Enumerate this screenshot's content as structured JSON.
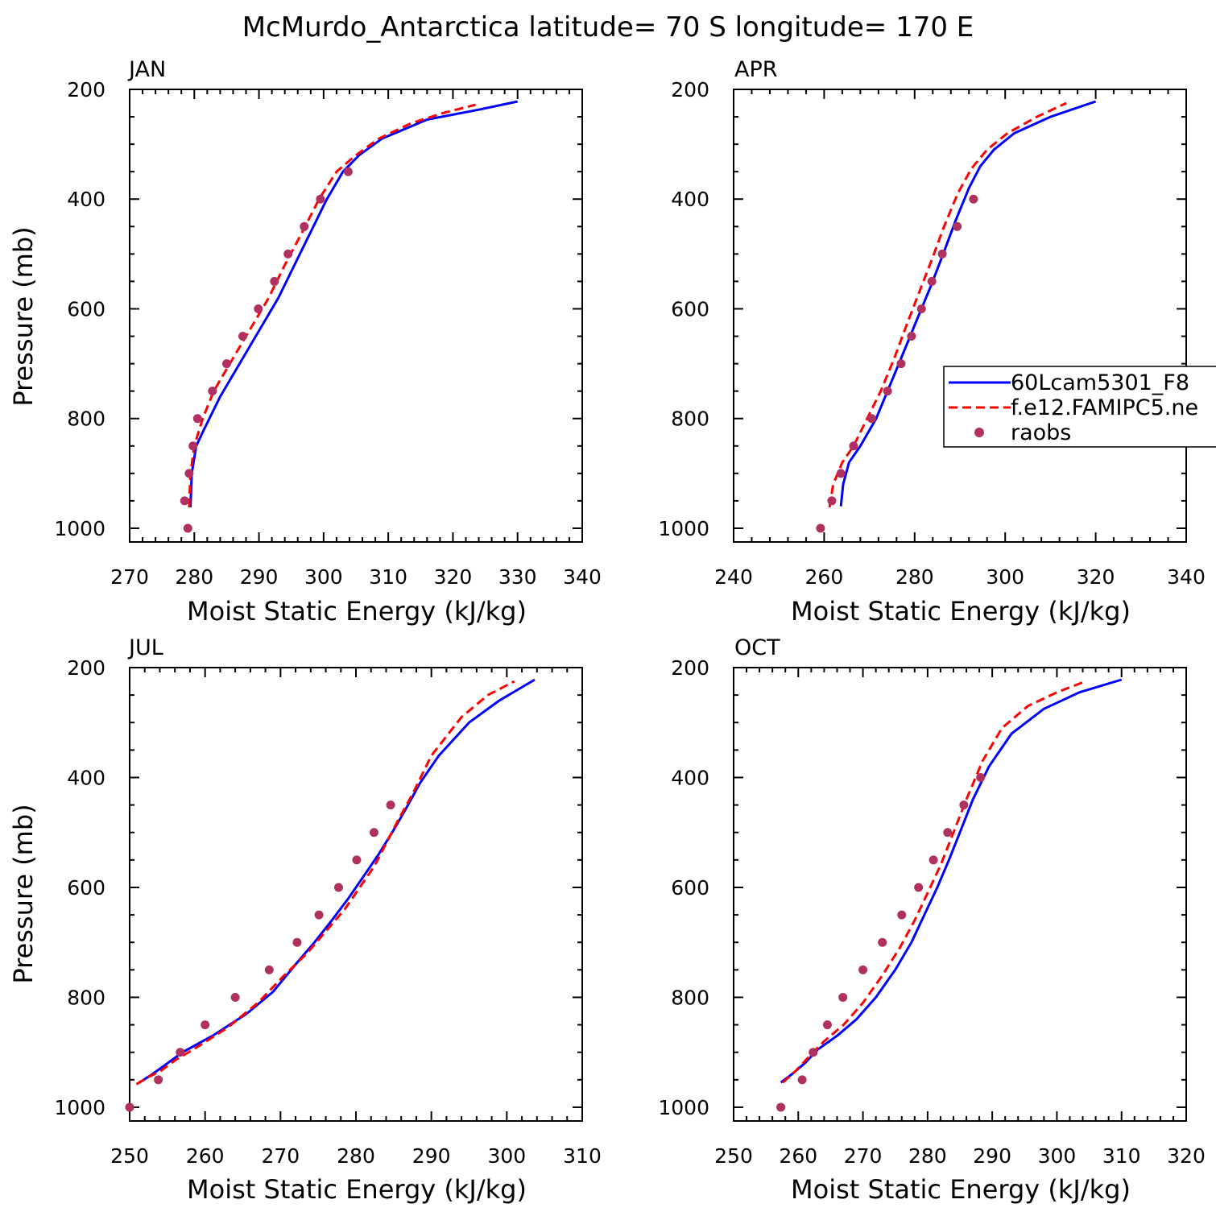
{
  "title": "McMurdo_Antarctica  latitude= 70 S longitude= 170 E",
  "colors": {
    "model1": "#0000ff",
    "model2": "#ff0000",
    "obs": "#b03060"
  },
  "legend": [
    {
      "label": "60Lcam5301_F8",
      "style": "solid",
      "color": "#0000ff"
    },
    {
      "label": "f.e12.FAMIPC5.ne",
      "style": "dashed",
      "color": "#ff0000"
    },
    {
      "label": "raobs",
      "style": "marker",
      "color": "#b03060"
    }
  ],
  "chart_data": [
    {
      "type": "line",
      "panel": "JAN",
      "xlabel": "Moist Static Energy (kJ/kg)",
      "ylabel": "Pressure (mb)",
      "xlim": [
        270,
        340
      ],
      "ylim": [
        1000,
        200
      ],
      "xticks": [
        270,
        280,
        290,
        300,
        310,
        320,
        330,
        340
      ],
      "yticks": [
        200,
        400,
        600,
        800,
        1000
      ],
      "series": [
        {
          "name": "60Lcam5301_F8",
          "x": [
            279.4,
            279.6,
            280.3,
            281.5,
            284.0,
            287.0,
            290.0,
            293.0,
            295.5,
            298.0,
            300.5,
            303.0,
            305.5,
            309.0,
            316.0,
            324.0,
            330.0
          ],
          "y": [
            962,
            900,
            850,
            820,
            760,
            700,
            640,
            580,
            520,
            460,
            400,
            350,
            320,
            290,
            255,
            237,
            222
          ]
        },
        {
          "name": "f.e12.FAMIPC5.ne",
          "x": [
            279.2,
            279.4,
            280.0,
            281.3,
            283.0,
            285.5,
            288.5,
            291.5,
            294.0,
            296.7,
            299.3,
            302.0,
            305.0,
            308.5,
            313.5,
            318.5,
            323.5
          ],
          "y": [
            962,
            900,
            850,
            800,
            750,
            700,
            640,
            580,
            520,
            460,
            400,
            350,
            320,
            290,
            262,
            243,
            228
          ]
        },
        {
          "name": "raobs",
          "x": [
            279.0,
            278.5,
            279.2,
            279.8,
            280.5,
            282.8,
            285.0,
            287.5,
            289.9,
            292.4,
            294.5,
            297.0,
            299.5,
            303.8
          ],
          "y": [
            1000,
            950,
            900,
            850,
            800,
            750,
            700,
            650,
            600,
            550,
            500,
            450,
            400,
            350
          ]
        }
      ]
    },
    {
      "type": "line",
      "panel": "APR",
      "xlabel": "Moist Static Energy (kJ/kg)",
      "ylabel": "",
      "xlim": [
        240,
        340
      ],
      "ylim": [
        1000,
        200
      ],
      "xticks": [
        240,
        260,
        280,
        300,
        320,
        340
      ],
      "yticks": [
        200,
        400,
        600,
        800,
        1000
      ],
      "series": [
        {
          "name": "60Lcam5301_F8",
          "x": [
            263.7,
            264.2,
            265.5,
            268.0,
            271.5,
            274.5,
            277.5,
            280.5,
            283.5,
            286.3,
            289.0,
            292.0,
            294.5,
            297.5,
            302.0,
            310.0,
            320.0
          ],
          "y": [
            960,
            920,
            880,
            850,
            800,
            740,
            680,
            620,
            560,
            500,
            440,
            380,
            340,
            310,
            280,
            250,
            222
          ]
        },
        {
          "name": "f.e12.FAMIPC5.ne",
          "x": [
            261.2,
            262.0,
            264.0,
            266.5,
            269.5,
            272.5,
            275.5,
            278.2,
            281.0,
            283.8,
            286.5,
            289.5,
            292.5,
            296.0,
            300.5,
            307.0,
            313.5
          ],
          "y": [
            962,
            920,
            880,
            850,
            800,
            750,
            690,
            630,
            570,
            510,
            450,
            390,
            345,
            310,
            280,
            250,
            225
          ]
        },
        {
          "name": "raobs",
          "x": [
            259.2,
            261.7,
            263.7,
            266.5,
            270.5,
            274.0,
            277.0,
            279.3,
            281.5,
            283.8,
            286.1,
            289.4,
            293.0
          ],
          "y": [
            1000,
            950,
            900,
            850,
            800,
            750,
            700,
            650,
            600,
            550,
            500,
            450,
            400
          ]
        }
      ]
    },
    {
      "type": "line",
      "panel": "JUL",
      "xlabel": "Moist Static Energy (kJ/kg)",
      "ylabel": "Pressure (mb)",
      "xlim": [
        250,
        310
      ],
      "ylim": [
        1000,
        200
      ],
      "xticks": [
        250,
        260,
        270,
        280,
        290,
        300,
        310
      ],
      "yticks": [
        200,
        400,
        600,
        800,
        1000
      ],
      "series": [
        {
          "name": "60Lcam5301_F8",
          "x": [
            251.3,
            253.0,
            254.5,
            257.0,
            261.0,
            265.5,
            269.0,
            272.0,
            274.5,
            276.8,
            279.0,
            281.0,
            283.0,
            284.8,
            286.5,
            288.5,
            291.0,
            295.0,
            299.0,
            303.7
          ],
          "y": [
            955,
            940,
            925,
            900,
            870,
            830,
            790,
            740,
            700,
            660,
            620,
            580,
            540,
            500,
            460,
            410,
            360,
            300,
            260,
            222
          ]
        },
        {
          "name": "f.e12.FAMIPC5.ne",
          "x": [
            250.9,
            252.5,
            254.0,
            256.0,
            259.0,
            263.0,
            267.0,
            270.5,
            273.5,
            276.0,
            278.5,
            280.5,
            282.5,
            284.0,
            285.5,
            287.5,
            290.0,
            294.0,
            297.5,
            301.0
          ],
          "y": [
            958,
            945,
            935,
            915,
            890,
            855,
            810,
            760,
            720,
            680,
            640,
            600,
            560,
            520,
            480,
            430,
            360,
            290,
            250,
            225
          ]
        },
        {
          "name": "raobs",
          "x": [
            250.0,
            253.8,
            256.7,
            260.0,
            264.0,
            268.5,
            272.2,
            275.1,
            277.7,
            280.1,
            282.4,
            284.6
          ],
          "y": [
            1000,
            950,
            900,
            850,
            800,
            750,
            700,
            650,
            600,
            550,
            500,
            450
          ]
        }
      ]
    },
    {
      "type": "line",
      "panel": "OCT",
      "xlabel": "Moist Static Energy (kJ/kg)",
      "ylabel": "",
      "xlim": [
        250,
        320
      ],
      "ylim": [
        1000,
        200
      ],
      "xticks": [
        250,
        260,
        270,
        280,
        290,
        300,
        310,
        320
      ],
      "yticks": [
        200,
        400,
        600,
        800,
        1000
      ],
      "series": [
        {
          "name": "60Lcam5301_F8",
          "x": [
            257.3,
            259.0,
            261.0,
            263.0,
            266.0,
            269.0,
            272.0,
            275.0,
            277.5,
            279.5,
            281.5,
            283.3,
            285.0,
            287.0,
            289.5,
            293.0,
            298.0,
            303.5,
            310.0
          ],
          "y": [
            955,
            940,
            920,
            895,
            870,
            840,
            800,
            750,
            700,
            650,
            600,
            550,
            500,
            440,
            380,
            320,
            275,
            245,
            222
          ]
        },
        {
          "name": "f.e12.FAMIPC5.ne",
          "x": [
            257.6,
            259.5,
            261.5,
            264.0,
            267.0,
            270.0,
            273.0,
            275.7,
            278.0,
            280.0,
            282.0,
            284.0,
            286.0,
            288.5,
            291.5,
            295.5,
            300.0,
            304.0
          ],
          "y": [
            955,
            935,
            910,
            880,
            850,
            810,
            760,
            710,
            660,
            610,
            560,
            500,
            440,
            370,
            310,
            270,
            245,
            227
          ]
        },
        {
          "name": "raobs",
          "x": [
            257.3,
            260.6,
            262.3,
            264.5,
            266.9,
            270.0,
            273.0,
            276.0,
            278.6,
            280.9,
            283.1,
            285.6,
            288.2
          ],
          "y": [
            1000,
            950,
            900,
            850,
            800,
            750,
            700,
            650,
            600,
            550,
            500,
            450,
            400
          ]
        }
      ]
    }
  ]
}
